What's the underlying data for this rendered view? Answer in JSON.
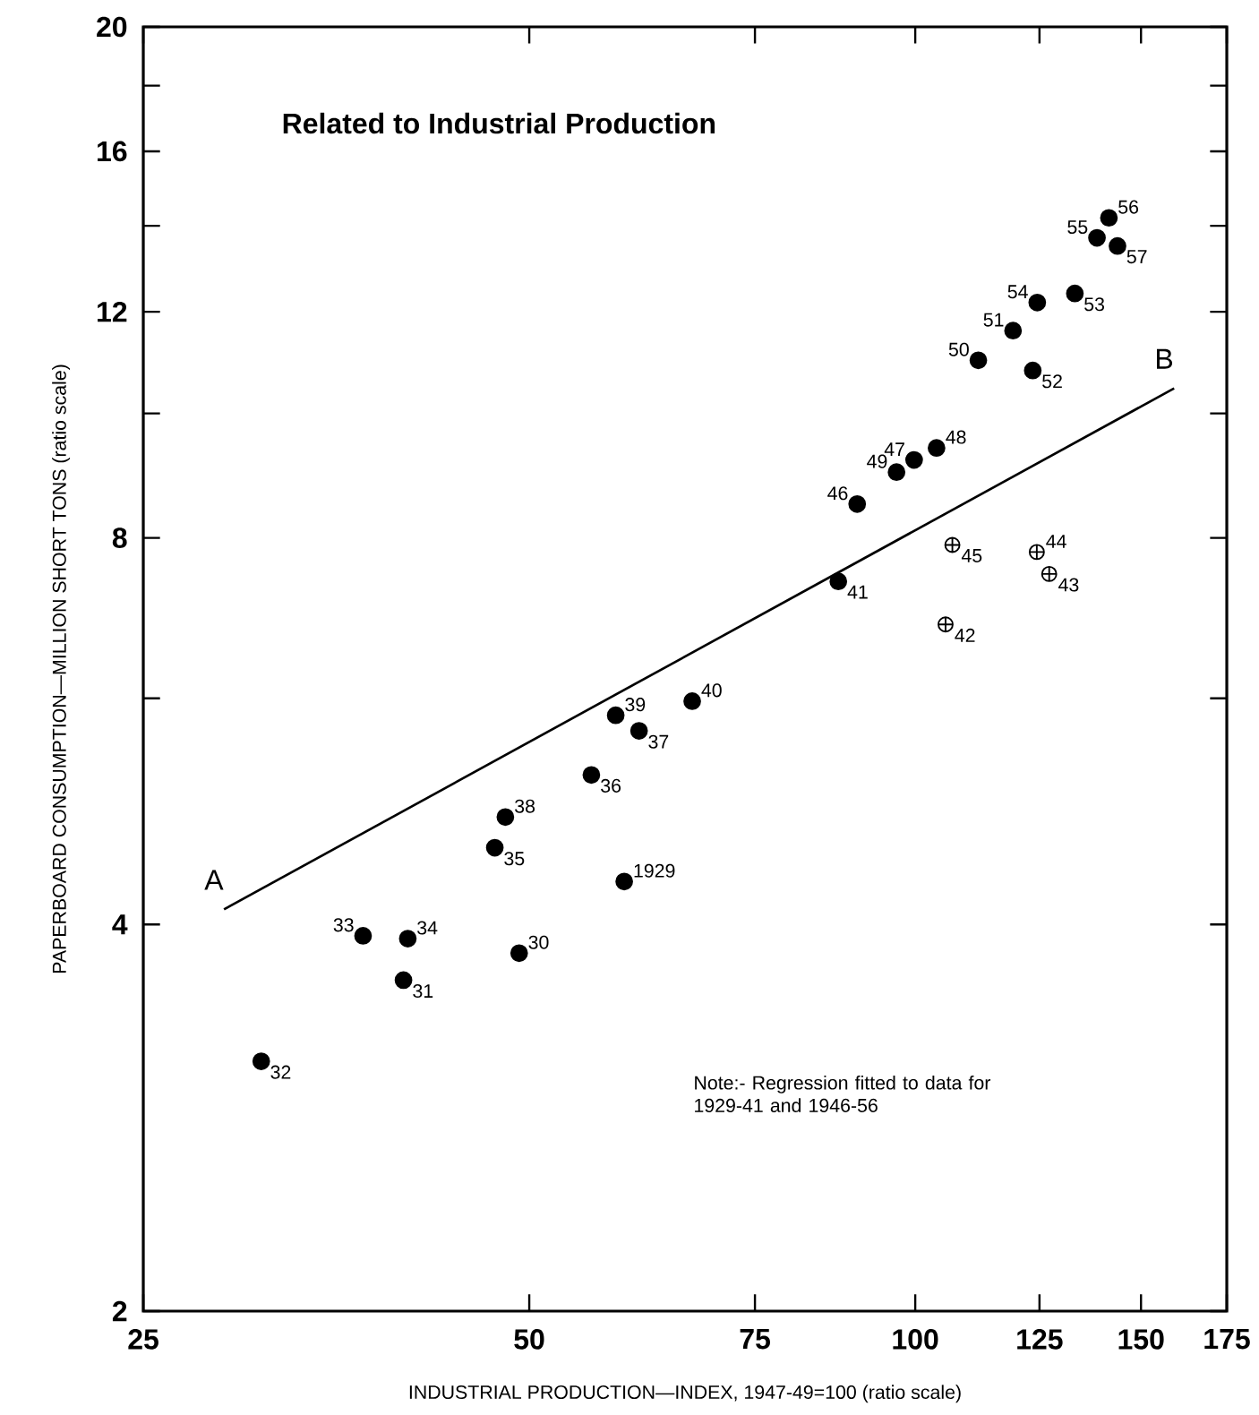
{
  "chart_data": {
    "type": "scatter",
    "title": "Related to Industrial Production",
    "xlabel": "INDUSTRIAL PRODUCTION—INDEX, 1947-49=100 (ratio scale)",
    "ylabel": "PAPERBOARD CONSUMPTION—MILLION SHORT TONS (ratio scale)",
    "log": "xy",
    "xlim": [
      25,
      175
    ],
    "ylim": [
      2,
      20
    ],
    "xticks": [
      25,
      50,
      75,
      100,
      125,
      150,
      175
    ],
    "yticks": [
      2,
      4,
      {
        "value": 6,
        "label": null
      },
      8,
      {
        "value": 10,
        "label": null
      },
      12,
      {
        "value": 14,
        "label": null
      },
      16,
      {
        "value": 18,
        "label": null
      },
      20
    ],
    "series": [
      {
        "marker": "circle",
        "color": "#000000",
        "x": [
          59.3,
          49.1,
          39.9,
          30.9,
          37.1,
          40.2,
          47.0,
          55.9,
          60.9,
          47.9,
          58.4,
          67.0,
          87.1,
          90.1,
          99.8,
          103.9,
          96.7,
          112,
          119.2,
          123.5,
          133.2,
          124.5,
          138.6,
          141.6,
          143.8
        ],
        "values": [
          4.32,
          3.8,
          3.62,
          3.13,
          3.92,
          3.9,
          4.59,
          5.23,
          5.66,
          4.85,
          5.82,
          5.97,
          7.4,
          8.5,
          9.2,
          9.4,
          9.0,
          11.0,
          11.6,
          10.8,
          12.4,
          12.2,
          13.7,
          14.2,
          13.5
        ]
      },
      {
        "marker": "cross",
        "color": "#000000",
        "x": [
          105.6,
          127.2,
          124.4,
          106.9
        ],
        "values": [
          6.85,
          7.5,
          7.8,
          7.9
        ]
      },
      {
        "type": "line",
        "marker": "none",
        "color": "#000000",
        "x": [
          28.9,
          159.2
        ],
        "values": [
          4.11,
          10.46
        ]
      }
    ],
    "annotations": [
      {
        "text": "1929",
        "x": 59.3,
        "y": 4.32
      },
      {
        "text": "30",
        "x": 49.1,
        "y": 3.8
      },
      {
        "text": "31",
        "x": 39.9,
        "y": 3.62
      },
      {
        "text": "32",
        "x": 30.9,
        "y": 3.13
      },
      {
        "text": "33",
        "x": 37.1,
        "y": 3.92
      },
      {
        "text": "34",
        "x": 40.2,
        "y": 3.9
      },
      {
        "text": "35",
        "x": 47.0,
        "y": 4.59
      },
      {
        "text": "36",
        "x": 55.9,
        "y": 5.23
      },
      {
        "text": "37",
        "x": 60.9,
        "y": 5.66
      },
      {
        "text": "38",
        "x": 47.9,
        "y": 4.85
      },
      {
        "text": "39",
        "x": 58.4,
        "y": 5.82
      },
      {
        "text": "40",
        "x": 67.0,
        "y": 5.97
      },
      {
        "text": "41",
        "x": 87.1,
        "y": 7.4
      },
      {
        "text": "46",
        "x": 90.1,
        "y": 8.5
      },
      {
        "text": "47",
        "x": 99.8,
        "y": 9.2
      },
      {
        "text": "48",
        "x": 103.9,
        "y": 9.4
      },
      {
        "text": "49",
        "x": 96.7,
        "y": 9.0
      },
      {
        "text": "50",
        "x": 112,
        "y": 11.0
      },
      {
        "text": "51",
        "x": 119.2,
        "y": 11.6
      },
      {
        "text": "52",
        "x": 123.5,
        "y": 10.8
      },
      {
        "text": "53",
        "x": 133.2,
        "y": 12.4
      },
      {
        "text": "54",
        "x": 124.5,
        "y": 12.2
      },
      {
        "text": "55",
        "x": 138.6,
        "y": 13.7
      },
      {
        "text": "56",
        "x": 141.6,
        "y": 14.2
      },
      {
        "text": "57",
        "x": 143.8,
        "y": 13.5
      },
      {
        "text": "42",
        "x": 105.6,
        "y": 6.85
      },
      {
        "text": "43",
        "x": 127.2,
        "y": 7.5
      },
      {
        "text": "44",
        "x": 124.4,
        "y": 7.8
      },
      {
        "text": "45",
        "x": 106.9,
        "y": 7.9
      },
      {
        "text": "A",
        "x": 28.9,
        "y": 4.11
      },
      {
        "text": "B",
        "x": 159.2,
        "y": 10.46
      },
      "Note:- Regression fitted to data for 1929-41 and 1946-56"
    ]
  }
}
